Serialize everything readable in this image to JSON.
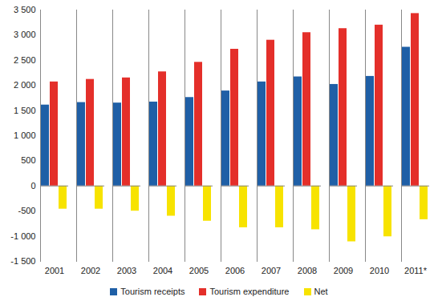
{
  "chart_data": {
    "type": "bar",
    "categories": [
      "2001",
      "2002",
      "2003",
      "2004",
      "2005",
      "2006",
      "2007",
      "2008",
      "2009",
      "2010",
      "2011*"
    ],
    "series": [
      {
        "name": "Tourism receipts",
        "color": "#1f5fa6",
        "values": [
          1610,
          1660,
          1650,
          1670,
          1760,
          1890,
          2070,
          2170,
          2020,
          2180,
          2760
        ]
      },
      {
        "name": "Tourism expenditure",
        "color": "#e42f2a",
        "values": [
          2070,
          2120,
          2150,
          2270,
          2460,
          2720,
          2900,
          3050,
          3130,
          3200,
          3430
        ]
      },
      {
        "name": "Net",
        "color": "#f7e300",
        "values": [
          -460,
          -460,
          -500,
          -600,
          -700,
          -830,
          -830,
          -870,
          -1110,
          -1010,
          -670
        ]
      }
    ],
    "ylim": [
      -1500,
      3500
    ],
    "yticks": [
      {
        "value": -1500,
        "label": "-1 500"
      },
      {
        "value": -1000,
        "label": "-1 000"
      },
      -500,
      0,
      500,
      {
        "value": 1000,
        "label": "1 000"
      },
      {
        "value": 1500,
        "label": "1 500"
      },
      {
        "value": 2000,
        "label": "2 000"
      },
      {
        "value": 2500,
        "label": "2 500"
      },
      {
        "value": 3000,
        "label": "3 000"
      },
      {
        "value": 3500,
        "label": "3 500"
      }
    ],
    "grid": false,
    "legend": "bottom"
  }
}
